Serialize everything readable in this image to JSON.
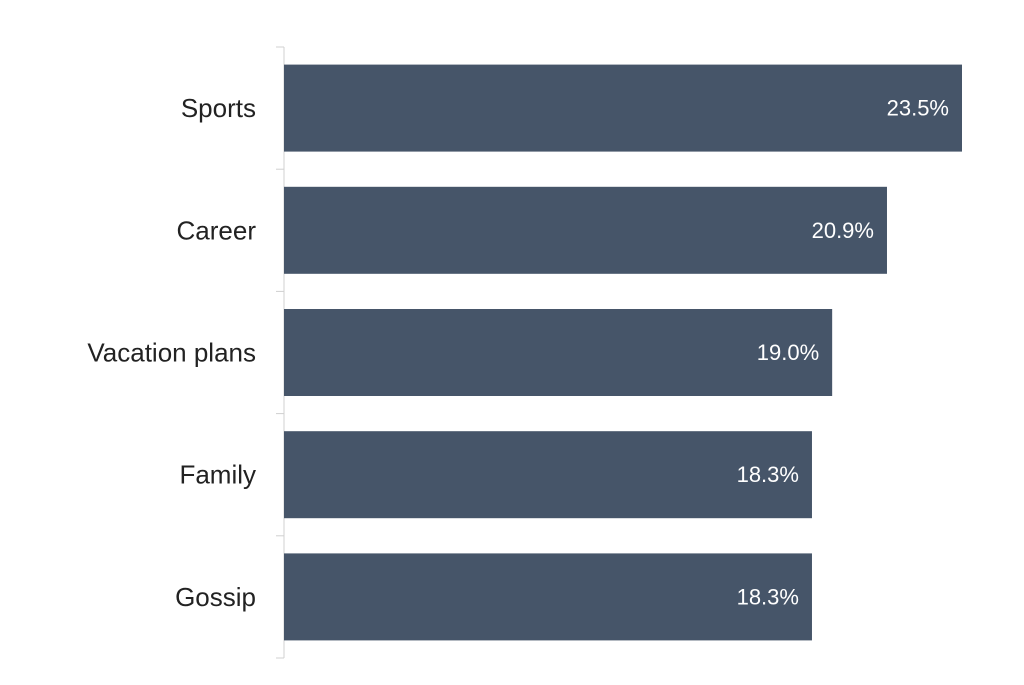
{
  "chart_data": {
    "type": "bar",
    "orientation": "horizontal",
    "categories": [
      "Sports",
      "Career",
      "Vacation plans",
      "Family",
      "Gossip"
    ],
    "values": [
      23.5,
      20.9,
      19.0,
      18.3,
      18.3
    ],
    "value_labels": [
      "23.5%",
      "20.9%",
      "19.0%",
      "18.3%",
      "18.3%"
    ],
    "unit": "%",
    "title": "",
    "xlabel": "",
    "ylabel": "",
    "xlim": [
      0,
      23.5
    ],
    "grid": false,
    "legend": "none",
    "bar_color": "#465569",
    "label_color": "#ffffff",
    "category_text_color": "#222222",
    "axis_color": "#d0d0d0"
  }
}
